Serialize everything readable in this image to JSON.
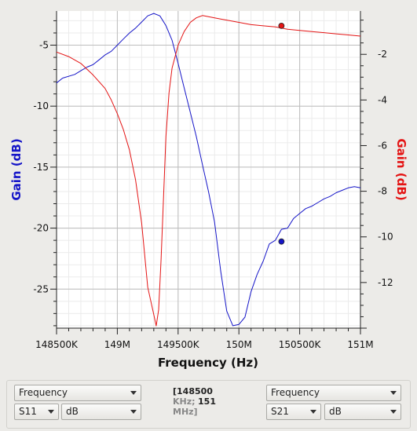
{
  "chart_data": {
    "type": "line",
    "title": "",
    "xlabel": "Frequency (Hz)",
    "ylabel_left": "Gain (dB)",
    "ylabel_right": "Gain (dB)",
    "xlim": [
      148500000,
      151000000
    ],
    "ylim_left": [
      -28.2,
      -2.2
    ],
    "ylim_right": [
      -14.0,
      -0.1
    ],
    "x_ticks": [
      {
        "value": 148500000,
        "label": "148500K"
      },
      {
        "value": 149000000,
        "label": "149M"
      },
      {
        "value": 149500000,
        "label": "149500K"
      },
      {
        "value": 150000000,
        "label": "150M"
      },
      {
        "value": 150500000,
        "label": "150500K"
      },
      {
        "value": 151000000,
        "label": "151M"
      }
    ],
    "y_ticks_left": [
      {
        "value": -5,
        "label": "-5"
      },
      {
        "value": -10,
        "label": "-10"
      },
      {
        "value": -15,
        "label": "-15"
      },
      {
        "value": -20,
        "label": "-20"
      },
      {
        "value": -25,
        "label": "-25"
      }
    ],
    "y_ticks_right": [
      {
        "value": -2,
        "label": "-2"
      },
      {
        "value": -4,
        "label": "-4"
      },
      {
        "value": -6,
        "label": "-6"
      },
      {
        "value": -8,
        "label": "-8"
      },
      {
        "value": -10,
        "label": "-10"
      },
      {
        "value": -12,
        "label": "-12"
      }
    ],
    "grid": true,
    "series": [
      {
        "color": "#1515c8",
        "axis": "left",
        "x": [
          148500000,
          148550000,
          148650000,
          148700000,
          148750000,
          148800000,
          148850000,
          148900000,
          148950000,
          149000000,
          149050000,
          149100000,
          149150000,
          149200000,
          149250000,
          149300000,
          149350000,
          149400000,
          149450000,
          149500000,
          149550000,
          149600000,
          149650000,
          149700000,
          149750000,
          149800000,
          149850000,
          149900000,
          149950000,
          150000000,
          150050000,
          150100000,
          150150000,
          150200000,
          150250000,
          150300000,
          150350000,
          150400000,
          150450000,
          150500000,
          150550000,
          150600000,
          150650000,
          150700000,
          150750000,
          150800000,
          150850000,
          150900000,
          150950000,
          151000000
        ],
        "values": [
          -8.1,
          -7.7,
          -7.4,
          -7.1,
          -6.8,
          -6.6,
          -6.2,
          -5.8,
          -5.5,
          -5.0,
          -4.5,
          -4.0,
          -3.6,
          -3.1,
          -2.6,
          -2.4,
          -2.6,
          -3.4,
          -4.6,
          -6.5,
          -8.5,
          -10.5,
          -12.5,
          -14.8,
          -17.0,
          -19.5,
          -23.5,
          -26.8,
          -28.0,
          -27.9,
          -27.3,
          -25.2,
          -23.8,
          -22.7,
          -21.3,
          -21.0,
          -20.1,
          -20.0,
          -19.2,
          -18.8,
          -18.4,
          -18.2,
          -17.9,
          -17.6,
          -17.4,
          -17.1,
          -16.9,
          -16.7,
          -16.6,
          -16.7
        ],
        "marker": {
          "x": 150350000,
          "y": -21.1
        }
      },
      {
        "color": "#e41414",
        "axis": "right",
        "x": [
          148500000,
          148600000,
          148700000,
          148800000,
          148900000,
          148950000,
          149000000,
          149050000,
          149100000,
          149150000,
          149200000,
          149250000,
          149300000,
          149320000,
          149340000,
          149360000,
          149380000,
          149400000,
          149425000,
          149450000,
          149500000,
          149550000,
          149600000,
          149650000,
          149700000,
          149750000,
          149800000,
          149850000,
          149900000,
          150000000,
          150100000,
          150200000,
          150300000,
          150350000,
          150400000,
          150500000,
          150600000,
          150700000,
          150800000,
          150900000,
          151000000
        ],
        "values": [
          -1.9,
          -2.1,
          -2.4,
          -2.9,
          -3.5,
          -4.0,
          -4.6,
          -5.3,
          -6.2,
          -7.5,
          -9.4,
          -12.2,
          -13.4,
          -13.9,
          -13.2,
          -11.0,
          -8.3,
          -5.6,
          -3.7,
          -2.6,
          -1.6,
          -1.0,
          -0.6,
          -0.4,
          -0.3,
          -0.35,
          -0.4,
          -0.45,
          -0.5,
          -0.6,
          -0.7,
          -0.75,
          -0.8,
          -0.85,
          -0.9,
          -0.95,
          -1.0,
          -1.05,
          -1.1,
          -1.15,
          -1.2
        ],
        "marker": {
          "x": 150350000,
          "y": -0.75
        }
      }
    ]
  },
  "controls": {
    "left_trace": {
      "domain": "Frequency",
      "param": "S11",
      "format": "dB"
    },
    "right_trace": {
      "domain": "Frequency",
      "param": "S21",
      "format": "dB"
    },
    "cursor_readout": {
      "line1": "[148500",
      "line2_unit": "KHz;",
      "line2_value": "151",
      "line3": "MHz]"
    }
  }
}
